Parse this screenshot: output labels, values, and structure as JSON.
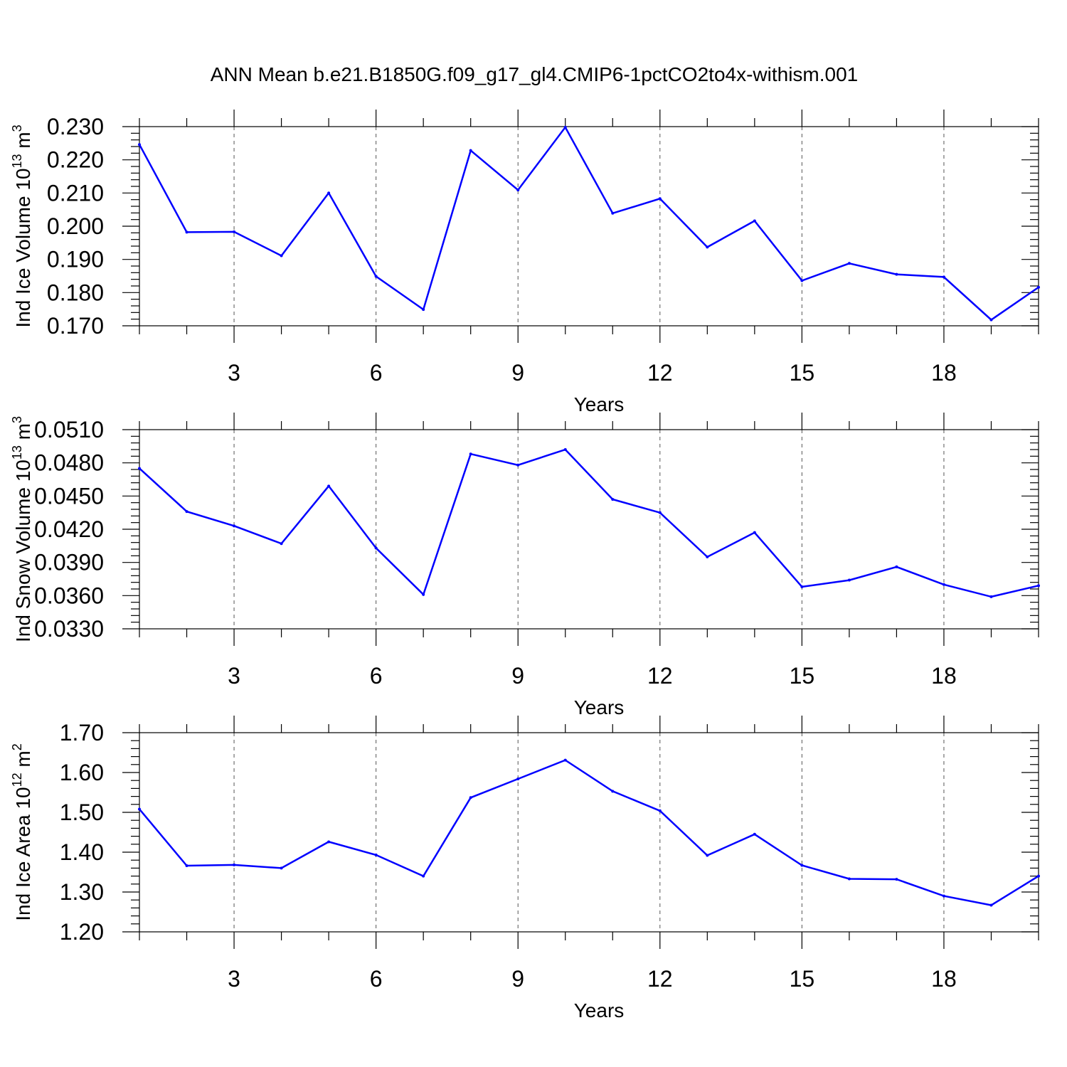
{
  "title": "ANN Mean b.e21.B1850G.f09_g17_gl4.CMIP6-1pctCO2to4x-withism.001",
  "chart_data": [
    {
      "type": "line",
      "ylabel": "Ind Ice Volume 10",
      "ylabel_exp": "13",
      "ylabel_unit": " m",
      "ylabel_unit_exp": "3",
      "xlabel": "Years",
      "xlim": [
        1,
        20
      ],
      "ylim": [
        0.17,
        0.23
      ],
      "yticks": [
        "0.170",
        "0.180",
        "0.190",
        "0.200",
        "0.210",
        "0.220",
        "0.230"
      ],
      "xticks": [
        "3",
        "6",
        "9",
        "12",
        "15",
        "18"
      ],
      "color": "#0000ff",
      "x": [
        1,
        2,
        3,
        4,
        5,
        6,
        7,
        8,
        9,
        10,
        11,
        12,
        13,
        14,
        15,
        16,
        17,
        18,
        19,
        20
      ],
      "values": [
        0.2246,
        0.1982,
        0.1983,
        0.1911,
        0.21,
        0.1849,
        0.1749,
        0.2228,
        0.2109,
        0.2298,
        0.2039,
        0.2083,
        0.1937,
        0.2016,
        0.1836,
        0.1888,
        0.1855,
        0.1847,
        0.1718,
        0.1816
      ]
    },
    {
      "type": "line",
      "ylabel": "Ind Snow Volume 10",
      "ylabel_exp": "13",
      "ylabel_unit": " m",
      "ylabel_unit_exp": "3",
      "xlabel": "Years",
      "xlim": [
        1,
        20
      ],
      "ylim": [
        0.033,
        0.051
      ],
      "yticks": [
        "0.0330",
        "0.0360",
        "0.0390",
        "0.0420",
        "0.0450",
        "0.0480",
        "0.0510"
      ],
      "xticks": [
        "3",
        "6",
        "9",
        "12",
        "15",
        "18"
      ],
      "color": "#0000ff",
      "x": [
        1,
        2,
        3,
        4,
        5,
        6,
        7,
        8,
        9,
        10,
        11,
        12,
        13,
        14,
        15,
        16,
        17,
        18,
        19,
        20
      ],
      "values": [
        0.0475,
        0.0436,
        0.0423,
        0.0407,
        0.0459,
        0.0403,
        0.0361,
        0.0488,
        0.0478,
        0.0492,
        0.0447,
        0.0435,
        0.0395,
        0.0417,
        0.0368,
        0.0374,
        0.0386,
        0.037,
        0.0359,
        0.0369
      ]
    },
    {
      "type": "line",
      "ylabel": "Ind Ice Area 10",
      "ylabel_exp": "12",
      "ylabel_unit": " m",
      "ylabel_unit_exp": "2",
      "xlabel": "Years",
      "xlim": [
        1,
        20
      ],
      "ylim": [
        1.2,
        1.7
      ],
      "yticks": [
        "1.20",
        "1.30",
        "1.40",
        "1.50",
        "1.60",
        "1.70"
      ],
      "xticks": [
        "3",
        "6",
        "9",
        "12",
        "15",
        "18"
      ],
      "color": "#0000ff",
      "x": [
        1,
        2,
        3,
        4,
        5,
        6,
        7,
        8,
        9,
        10,
        11,
        12,
        13,
        14,
        15,
        16,
        17,
        18,
        19,
        20
      ],
      "values": [
        1.508,
        1.366,
        1.368,
        1.36,
        1.426,
        1.393,
        1.34,
        1.537,
        1.584,
        1.631,
        1.553,
        1.504,
        1.392,
        1.445,
        1.367,
        1.333,
        1.332,
        1.29,
        1.267,
        1.34
      ]
    }
  ]
}
